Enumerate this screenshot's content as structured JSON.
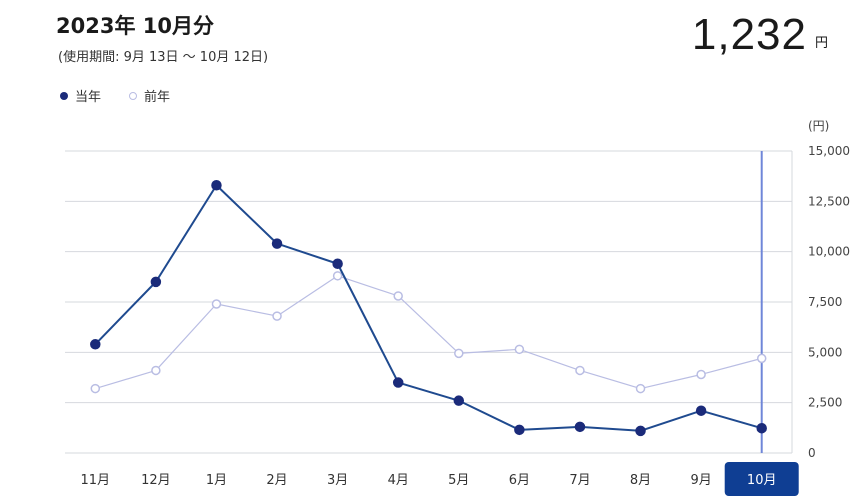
{
  "header": {
    "title": "2023年 10月分",
    "subtitle": "(使用期間: 9月 13日 〜 10月 12日)",
    "total_value": "1,232",
    "total_unit": "円"
  },
  "legend": {
    "current_label": "当年",
    "previous_label": "前年"
  },
  "colors": {
    "current": "#1b2b7a",
    "current_line": "#1f4a8f",
    "previous": "#b9bde3",
    "selected": "#0f3e93",
    "cursor": "#6f86d8",
    "grid": "#d6d8de"
  },
  "chart_data": {
    "type": "line",
    "categories": [
      "11月",
      "12月",
      "1月",
      "2月",
      "3月",
      "4月",
      "5月",
      "6月",
      "7月",
      "8月",
      "9月",
      "10月"
    ],
    "series": [
      {
        "name": "当年",
        "values": [
          5400,
          8500,
          13300,
          10400,
          9400,
          3500,
          2600,
          1150,
          1300,
          1100,
          2100,
          1232
        ]
      },
      {
        "name": "前年",
        "values": [
          3200,
          4100,
          7400,
          6800,
          8800,
          7800,
          4950,
          5150,
          4100,
          3200,
          3900,
          4700
        ]
      }
    ],
    "ylabel": "(円)",
    "ylim": [
      0,
      15000
    ],
    "y_ticks": [
      {
        "value": 0,
        "label": "0"
      },
      {
        "value": 2500,
        "label": "2,500"
      },
      {
        "value": 5000,
        "label": "5,000"
      },
      {
        "value": 7500,
        "label": "7,500"
      },
      {
        "value": 10000,
        "label": "10,000"
      },
      {
        "value": 12500,
        "label": "12,500"
      },
      {
        "value": 15000,
        "label": "15,000"
      }
    ],
    "selected_category": "10月",
    "grid": true,
    "legend_position": "top-left"
  }
}
